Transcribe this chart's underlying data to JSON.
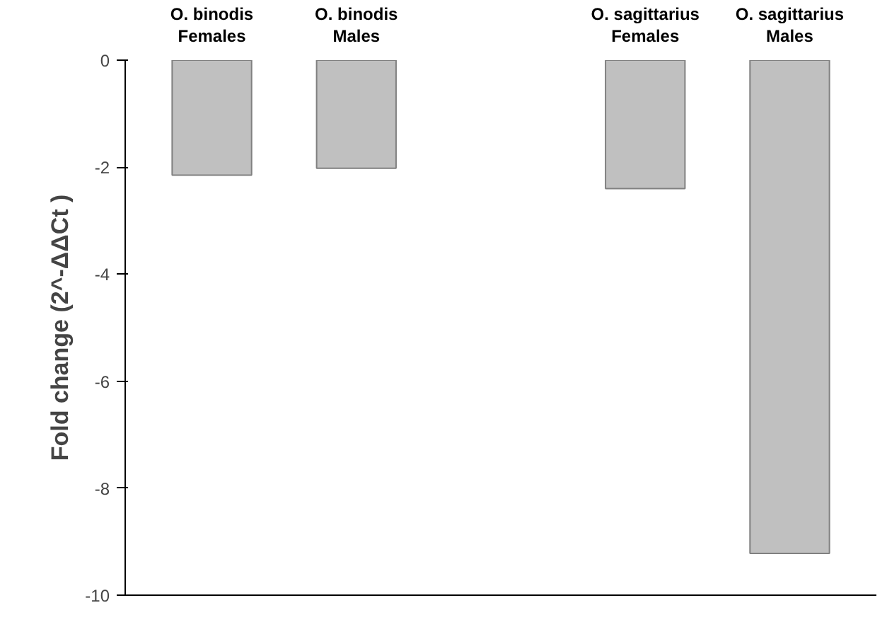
{
  "chart_data": {
    "type": "bar",
    "categories": [
      "O. binodis\nFemales",
      "O. binodis\nMales",
      null,
      "O. sagittarius\nFemales",
      "O. sagittarius\nMales"
    ],
    "values": [
      -2.15,
      -2.02,
      null,
      -2.4,
      -9.22
    ],
    "color": "#c0c0c0",
    "ylabel": "Fold change (2^-ΔΔCt )",
    "ylim": [
      -10,
      0
    ],
    "yticks": [
      0,
      -2,
      -4,
      -6,
      -8,
      -10
    ],
    "grid": false,
    "tick_labels": "y"
  }
}
